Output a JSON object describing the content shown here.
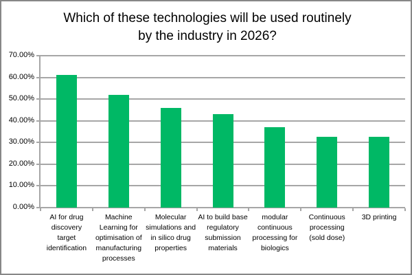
{
  "chart_data": {
    "type": "bar",
    "title": "Which of these technologies will be used routinely by the industry in 2026?",
    "categories": [
      "AI for drug discovery target identification",
      "Machine Learning for optimisation of manufacturing processes",
      "Molecular simulations and in silico drug properties",
      "AI to build base regulatory submission materials",
      "modular continuous processing for biologics",
      "Continuous processing (sold dose)",
      "3D printing"
    ],
    "values": [
      61,
      52,
      46,
      43,
      37,
      32.5,
      32.5
    ],
    "unit": "percent",
    "ylim": [
      0,
      70
    ],
    "ytick_step": 10,
    "ytick_labels": [
      "0.00%",
      "10.00%",
      "20.00%",
      "30.00%",
      "40.00%",
      "50.00%",
      "60.00%",
      "70.00%"
    ],
    "xlabel": "",
    "ylabel": "",
    "grid": true,
    "legend": "none",
    "bar_color": "#00B865",
    "gridline_color": "#A6A6A6",
    "axis_color": "#A6A6A6",
    "frame_border_color": "#878787",
    "text_color": "#000000"
  }
}
